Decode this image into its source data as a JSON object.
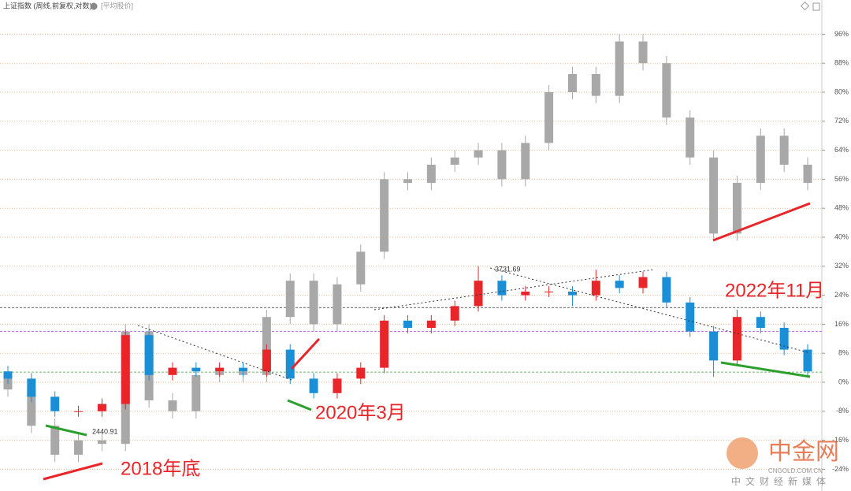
{
  "header": {
    "title": "上证指数 (周线,前复权,对数)",
    "tag": "[平均股价]"
  },
  "chart_data": {
    "type": "candlestick",
    "ylim": [
      -29,
      101
    ],
    "yticks": [
      {
        "value": -24,
        "label": "-24%"
      },
      {
        "value": -16,
        "label": "-16%"
      },
      {
        "value": -8,
        "label": "-8%"
      },
      {
        "value": 0,
        "label": "0%"
      },
      {
        "value": 8,
        "label": "8%"
      },
      {
        "value": 16,
        "label": "16%"
      },
      {
        "value": 24,
        "label": "24%"
      },
      {
        "value": 32,
        "label": "32%"
      },
      {
        "value": 40,
        "label": "40%"
      },
      {
        "value": 48,
        "label": "48%"
      },
      {
        "value": 56,
        "label": "56%"
      },
      {
        "value": 64,
        "label": "64%"
      },
      {
        "value": 72,
        "label": "72%"
      },
      {
        "value": 80,
        "label": "80%"
      },
      {
        "value": 88,
        "label": "88%"
      },
      {
        "value": 96,
        "label": "96%"
      }
    ],
    "grid": true,
    "series": [
      {
        "color": "#a8a8a8",
        "open": [
          2,
          -2,
          -12,
          -20,
          -16,
          -17,
          14,
          -5,
          -8,
          2,
          3,
          2,
          18,
          28,
          16,
          27,
          36,
          56,
          55,
          60,
          62,
          64,
          56,
          66,
          80,
          85,
          79,
          94,
          88,
          73,
          62,
          41,
          55,
          68,
          60
        ],
        "high": [
          4,
          0,
          -10,
          -14,
          -14,
          16,
          16,
          -3,
          4,
          5,
          5,
          20,
          30,
          30,
          29,
          38,
          58,
          58,
          62,
          64,
          66,
          66,
          68,
          82,
          87,
          87,
          96,
          96,
          90,
          75,
          64,
          57,
          70,
          70,
          62
        ],
        "low": [
          -4,
          -14,
          -22,
          -22,
          -19,
          -19,
          -7,
          -10,
          -10,
          0,
          0,
          0,
          16,
          14,
          14,
          25,
          34,
          53,
          53,
          58,
          60,
          54,
          54,
          64,
          78,
          77,
          77,
          86,
          71,
          60,
          39,
          39,
          53,
          58,
          53
        ],
        "close": [
          -2,
          -12,
          -20,
          -16,
          -17,
          14,
          -5,
          -8,
          2,
          3,
          2,
          18,
          28,
          16,
          27,
          36,
          56,
          55,
          60,
          62,
          64,
          56,
          66,
          80,
          85,
          79,
          94,
          88,
          73,
          62,
          41,
          55,
          68,
          60,
          55
        ]
      },
      {
        "up_color": "#e8262a",
        "down_color": "#1a8fd6",
        "open": [
          3,
          1,
          -4,
          -8,
          -8,
          -6,
          13,
          2,
          4,
          3,
          4,
          3,
          9,
          1,
          -3,
          1,
          4,
          17,
          15,
          17,
          21,
          28,
          24,
          25,
          25,
          24,
          28,
          26,
          29,
          22,
          14,
          6,
          18,
          15,
          9
        ],
        "high": [
          4.5,
          2.5,
          -2.5,
          -6.5,
          -4.5,
          14.5,
          14.5,
          5.5,
          5.5,
          5.5,
          5.5,
          10.5,
          10.5,
          2.5,
          2.5,
          5.5,
          18.5,
          18.5,
          18.5,
          22.5,
          32,
          29.5,
          26.5,
          26.5,
          26.5,
          31,
          29.5,
          30.5,
          30.5,
          23.5,
          15.5,
          20,
          19.5,
          16.5,
          10.5
        ],
        "low": [
          -0.5,
          -5.5,
          -9.5,
          -9.5,
          -9.5,
          -7.5,
          0.5,
          0.5,
          1.5,
          1.5,
          1.5,
          1.5,
          -0.5,
          -4.5,
          -4.5,
          -0.5,
          2.5,
          13.5,
          13.5,
          15.5,
          19.5,
          22.5,
          22.5,
          23.5,
          21,
          22.5,
          24.5,
          24.5,
          20.5,
          12.5,
          1.5,
          4.5,
          13.5,
          7.5,
          1.5
        ],
        "close": [
          1,
          -4,
          -8,
          -8,
          -6,
          13,
          2,
          4,
          3,
          4,
          3,
          9,
          1,
          -3,
          1,
          4,
          17,
          15,
          17,
          21,
          28,
          24,
          25,
          25,
          24,
          28,
          26,
          29,
          22,
          14,
          6,
          18,
          15,
          9,
          3
        ]
      }
    ],
    "hlines": [
      {
        "value": 2.8,
        "color": "#3aa63a"
      },
      {
        "value": 14,
        "color": "#b040e0"
      },
      {
        "value": 20.6,
        "color": "#333333"
      }
    ],
    "annotations": [
      "2018年底",
      "2020年3月",
      "2022年11月",
      "3731.69",
      "2440.91"
    ]
  },
  "watermark": {
    "name": "中金网",
    "url": "CNGOLD.COM.CN",
    "tagline": "中文财经新媒体"
  }
}
